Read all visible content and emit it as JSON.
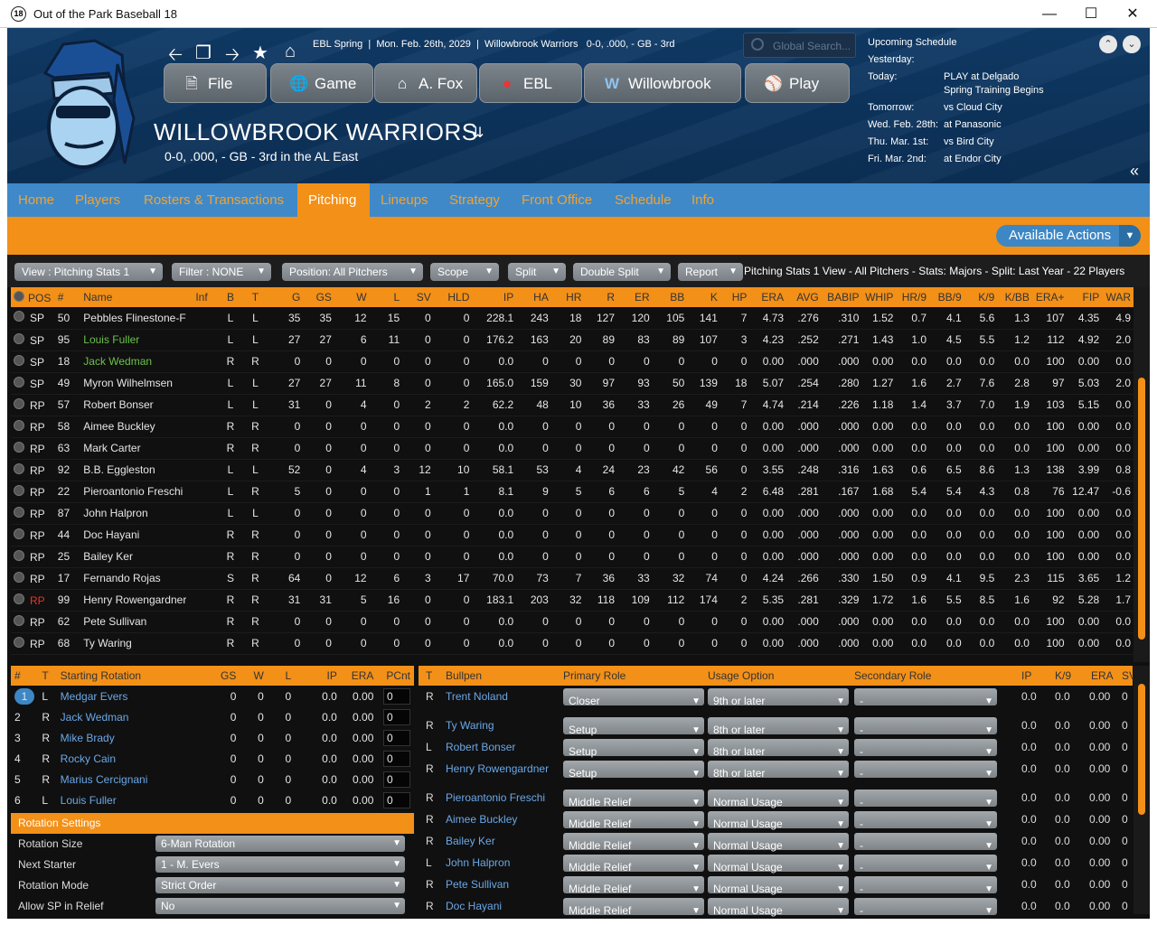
{
  "window": {
    "title": "Out of the Park Baseball 18",
    "icon": "18"
  },
  "breadcrumb": {
    "league": "EBL Spring",
    "date": "Mon. Feb. 26th, 2029",
    "team": "Willowbrook Warriors",
    "record": "0-0, .000, - GB - 3rd"
  },
  "search": {
    "placeholder": "Global Search..."
  },
  "menu": [
    "File",
    "Game",
    "A. Fox",
    "EBL",
    "Willowbrook",
    "Play"
  ],
  "team": {
    "name": "WILLOWBROOK WARRIORS",
    "sub": "0-0, .000, - GB - 3rd in the AL East"
  },
  "schedule": {
    "title": "Upcoming Schedule",
    "rows": [
      [
        "Yesterday:",
        ""
      ],
      [
        "Today:",
        "PLAY at Delgado"
      ],
      [
        "",
        "Spring Training Begins"
      ],
      [
        "Tomorrow:",
        "vs Cloud City"
      ],
      [
        "Wed. Feb. 28th:",
        "at Panasonic"
      ],
      [
        "Thu. Mar. 1st:",
        "vs Bird City"
      ],
      [
        "Fri. Mar. 2nd:",
        "at Endor City"
      ]
    ]
  },
  "tabs": [
    "Home",
    "Players",
    "Rosters & Transactions",
    "Pitching",
    "Lineups",
    "Strategy",
    "Front Office",
    "Schedule",
    "Info"
  ],
  "actions": {
    "label": "Available Actions"
  },
  "filters": [
    "View : Pitching Stats 1",
    "Filter : NONE",
    "Position: All Pitchers",
    "Scope",
    "Split",
    "Double Split",
    "Report"
  ],
  "view_info": "Pitching Stats 1 View - All Pitchers - Stats: Majors - Split: Last Year - 22 Players",
  "stats": {
    "columns": [
      "POS",
      "#",
      "Name",
      "Inf",
      "B",
      "T",
      "G",
      "GS",
      "W",
      "L",
      "SV",
      "HLD",
      "IP",
      "HA",
      "HR",
      "R",
      "ER",
      "BB",
      "K",
      "HP",
      "ERA",
      "AVG",
      "BABIP",
      "WHIP",
      "HR/9",
      "BB/9",
      "K/9",
      "K/BB",
      "ERA+",
      "FIP",
      "WAR"
    ],
    "rows": [
      [
        "SP",
        "50",
        "Pebbles Flinestone-F",
        "",
        "L",
        "L",
        "35",
        "35",
        "12",
        "15",
        "0",
        "0",
        "228.1",
        "243",
        "18",
        "127",
        "120",
        "105",
        "141",
        "7",
        "4.73",
        ".276",
        ".310",
        "1.52",
        "0.7",
        "4.1",
        "5.6",
        "1.3",
        "107",
        "4.35",
        "4.9"
      ],
      [
        "SP",
        "95",
        "Louis Fuller",
        "",
        "L",
        "L",
        "27",
        "27",
        "6",
        "11",
        "0",
        "0",
        "176.2",
        "163",
        "20",
        "89",
        "83",
        "89",
        "107",
        "3",
        "4.23",
        ".252",
        ".271",
        "1.43",
        "1.0",
        "4.5",
        "5.5",
        "1.2",
        "112",
        "4.92",
        "2.0"
      ],
      [
        "SP",
        "18",
        "Jack Wedman",
        "",
        "R",
        "R",
        "0",
        "0",
        "0",
        "0",
        "0",
        "0",
        "0.0",
        "0",
        "0",
        "0",
        "0",
        "0",
        "0",
        "0",
        "0.00",
        ".000",
        ".000",
        "0.00",
        "0.0",
        "0.0",
        "0.0",
        "0.0",
        "100",
        "0.00",
        "0.0"
      ],
      [
        "SP",
        "49",
        "Myron Wilhelmsen",
        "",
        "L",
        "L",
        "27",
        "27",
        "11",
        "8",
        "0",
        "0",
        "165.0",
        "159",
        "30",
        "97",
        "93",
        "50",
        "139",
        "18",
        "5.07",
        ".254",
        ".280",
        "1.27",
        "1.6",
        "2.7",
        "7.6",
        "2.8",
        "97",
        "5.03",
        "2.0"
      ],
      [
        "RP",
        "57",
        "Robert Bonser",
        "",
        "L",
        "L",
        "31",
        "0",
        "4",
        "0",
        "2",
        "2",
        "62.2",
        "48",
        "10",
        "36",
        "33",
        "26",
        "49",
        "7",
        "4.74",
        ".214",
        ".226",
        "1.18",
        "1.4",
        "3.7",
        "7.0",
        "1.9",
        "103",
        "5.15",
        "0.0"
      ],
      [
        "RP",
        "58",
        "Aimee Buckley",
        "",
        "R",
        "R",
        "0",
        "0",
        "0",
        "0",
        "0",
        "0",
        "0.0",
        "0",
        "0",
        "0",
        "0",
        "0",
        "0",
        "0",
        "0.00",
        ".000",
        ".000",
        "0.00",
        "0.0",
        "0.0",
        "0.0",
        "0.0",
        "100",
        "0.00",
        "0.0"
      ],
      [
        "RP",
        "63",
        "Mark Carter",
        "",
        "R",
        "R",
        "0",
        "0",
        "0",
        "0",
        "0",
        "0",
        "0.0",
        "0",
        "0",
        "0",
        "0",
        "0",
        "0",
        "0",
        "0.00",
        ".000",
        ".000",
        "0.00",
        "0.0",
        "0.0",
        "0.0",
        "0.0",
        "100",
        "0.00",
        "0.0"
      ],
      [
        "RP",
        "92",
        "B.B. Eggleston",
        "",
        "L",
        "L",
        "52",
        "0",
        "4",
        "3",
        "12",
        "10",
        "58.1",
        "53",
        "4",
        "24",
        "23",
        "42",
        "56",
        "0",
        "3.55",
        ".248",
        ".316",
        "1.63",
        "0.6",
        "6.5",
        "8.6",
        "1.3",
        "138",
        "3.99",
        "0.8"
      ],
      [
        "RP",
        "22",
        "Pieroantonio Freschi",
        "",
        "L",
        "R",
        "5",
        "0",
        "0",
        "0",
        "1",
        "1",
        "8.1",
        "9",
        "5",
        "6",
        "6",
        "5",
        "4",
        "2",
        "6.48",
        ".281",
        ".167",
        "1.68",
        "5.4",
        "5.4",
        "4.3",
        "0.8",
        "76",
        "12.47",
        "-0.6"
      ],
      [
        "RP",
        "87",
        "John Halpron",
        "",
        "L",
        "L",
        "0",
        "0",
        "0",
        "0",
        "0",
        "0",
        "0.0",
        "0",
        "0",
        "0",
        "0",
        "0",
        "0",
        "0",
        "0.00",
        ".000",
        ".000",
        "0.00",
        "0.0",
        "0.0",
        "0.0",
        "0.0",
        "100",
        "0.00",
        "0.0"
      ],
      [
        "RP",
        "44",
        "Doc Hayani",
        "",
        "R",
        "R",
        "0",
        "0",
        "0",
        "0",
        "0",
        "0",
        "0.0",
        "0",
        "0",
        "0",
        "0",
        "0",
        "0",
        "0",
        "0.00",
        ".000",
        ".000",
        "0.00",
        "0.0",
        "0.0",
        "0.0",
        "0.0",
        "100",
        "0.00",
        "0.0"
      ],
      [
        "RP",
        "25",
        "Bailey Ker",
        "",
        "R",
        "R",
        "0",
        "0",
        "0",
        "0",
        "0",
        "0",
        "0.0",
        "0",
        "0",
        "0",
        "0",
        "0",
        "0",
        "0",
        "0.00",
        ".000",
        ".000",
        "0.00",
        "0.0",
        "0.0",
        "0.0",
        "0.0",
        "100",
        "0.00",
        "0.0"
      ],
      [
        "RP",
        "17",
        "Fernando Rojas",
        "",
        "S",
        "R",
        "64",
        "0",
        "12",
        "6",
        "3",
        "17",
        "70.0",
        "73",
        "7",
        "36",
        "33",
        "32",
        "74",
        "0",
        "4.24",
        ".266",
        ".330",
        "1.50",
        "0.9",
        "4.1",
        "9.5",
        "2.3",
        "115",
        "3.65",
        "1.2"
      ],
      [
        "RP",
        "99",
        "Henry Rowengardner",
        "",
        "R",
        "R",
        "31",
        "31",
        "5",
        "16",
        "0",
        "0",
        "183.1",
        "203",
        "32",
        "118",
        "109",
        "112",
        "174",
        "2",
        "5.35",
        ".281",
        ".329",
        "1.72",
        "1.6",
        "5.5",
        "8.5",
        "1.6",
        "92",
        "5.28",
        "1.7"
      ],
      [
        "RP",
        "62",
        "Pete Sullivan",
        "",
        "R",
        "R",
        "0",
        "0",
        "0",
        "0",
        "0",
        "0",
        "0.0",
        "0",
        "0",
        "0",
        "0",
        "0",
        "0",
        "0",
        "0.00",
        ".000",
        ".000",
        "0.00",
        "0.0",
        "0.0",
        "0.0",
        "0.0",
        "100",
        "0.00",
        "0.0"
      ],
      [
        "RP",
        "68",
        "Ty Waring",
        "",
        "R",
        "R",
        "0",
        "0",
        "0",
        "0",
        "0",
        "0",
        "0.0",
        "0",
        "0",
        "0",
        "0",
        "0",
        "0",
        "0",
        "0.00",
        ".000",
        ".000",
        "0.00",
        "0.0",
        "0.0",
        "0.0",
        "0.0",
        "100",
        "0.00",
        "0.0"
      ]
    ]
  },
  "rotation": {
    "columns": [
      "#",
      "T",
      "Starting Rotation",
      "GS",
      "W",
      "L",
      "IP",
      "ERA",
      "PCnt"
    ],
    "rows": [
      [
        "1",
        "L",
        "Medgar Evers",
        "0",
        "0",
        "0",
        "0.0",
        "0.00",
        "0"
      ],
      [
        "2",
        "R",
        "Jack Wedman",
        "0",
        "0",
        "0",
        "0.0",
        "0.00",
        "0"
      ],
      [
        "3",
        "R",
        "Mike Brady",
        "0",
        "0",
        "0",
        "0.0",
        "0.00",
        "0"
      ],
      [
        "4",
        "R",
        "Rocky Cain",
        "0",
        "0",
        "0",
        "0.0",
        "0.00",
        "0"
      ],
      [
        "5",
        "R",
        "Marius Cercignani",
        "0",
        "0",
        "0",
        "0.0",
        "0.00",
        "0"
      ],
      [
        "6",
        "L",
        "Louis Fuller",
        "0",
        "0",
        "0",
        "0.0",
        "0.00",
        "0"
      ]
    ]
  },
  "rotation_settings": {
    "title": "Rotation Settings",
    "rows": [
      [
        "Rotation Size",
        "6-Man Rotation"
      ],
      [
        "Next Starter",
        "1 - M. Evers"
      ],
      [
        "Rotation Mode",
        "Strict Order"
      ],
      [
        "Allow SP in Relief",
        "No"
      ]
    ]
  },
  "bullpen": {
    "columns": [
      "T",
      "Bullpen",
      "Primary Role",
      "Usage Option",
      "Secondary Role",
      "IP",
      "K/9",
      "ERA",
      "SV"
    ],
    "rows": [
      [
        "R",
        "Trent Noland",
        "Closer",
        "9th or later",
        "-",
        "0.0",
        "0.0",
        "0.00",
        "0"
      ],
      [
        "R",
        "Ty Waring",
        "Setup",
        "8th or later",
        "-",
        "0.0",
        "0.0",
        "0.00",
        "0"
      ],
      [
        "L",
        "Robert Bonser",
        "Setup",
        "8th or later",
        "-",
        "0.0",
        "0.0",
        "0.00",
        "0"
      ],
      [
        "R",
        "Henry Rowengardner",
        "Setup",
        "8th or later",
        "-",
        "0.0",
        "0.0",
        "0.00",
        "0"
      ],
      [
        "R",
        "Pieroantonio Freschi",
        "Middle Relief",
        "Normal Usage",
        "-",
        "0.0",
        "0.0",
        "0.00",
        "0"
      ],
      [
        "R",
        "Aimee Buckley",
        "Middle Relief",
        "Normal Usage",
        "-",
        "0.0",
        "0.0",
        "0.00",
        "0"
      ],
      [
        "R",
        "Bailey Ker",
        "Middle Relief",
        "Normal Usage",
        "-",
        "0.0",
        "0.0",
        "0.00",
        "0"
      ],
      [
        "L",
        "John Halpron",
        "Middle Relief",
        "Normal Usage",
        "-",
        "0.0",
        "0.0",
        "0.00",
        "0"
      ],
      [
        "R",
        "Pete Sullivan",
        "Middle Relief",
        "Normal Usage",
        "-",
        "0.0",
        "0.0",
        "0.00",
        "0"
      ],
      [
        "R",
        "Doc Hayani",
        "Middle Relief",
        "Normal Usage",
        "-",
        "0.0",
        "0.0",
        "0.00",
        "0"
      ]
    ]
  },
  "colors": {
    "accent": "#f39018",
    "tabbar": "#3f89c9",
    "header": "#0f3a66",
    "link": "#6aa8e8",
    "highlight_green": "#6ac24a",
    "highlight_red": "#e6352a"
  }
}
